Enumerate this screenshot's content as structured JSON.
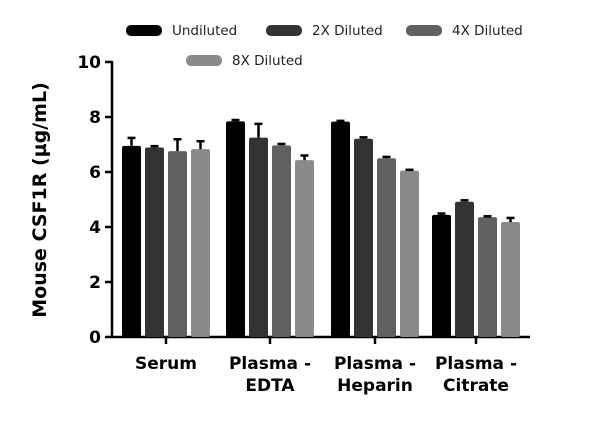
{
  "chart_data": {
    "type": "bar",
    "title": "",
    "xlabel": "",
    "ylabel": "Mouse CSF1R (µg/mL)",
    "ylim": [
      0,
      10
    ],
    "yticks": [
      "0",
      "2",
      "4",
      "6",
      "8",
      "10"
    ],
    "categories": [
      [
        "Serum"
      ],
      [
        "Plasma -",
        "EDTA"
      ],
      [
        "Plasma -",
        "Heparin"
      ],
      [
        "Plasma -",
        "Citrate"
      ]
    ],
    "legend_position": "top",
    "series": [
      {
        "name": "Undiluted",
        "color": "#000000",
        "values": [
          6.95,
          7.84,
          7.83,
          4.44
        ],
        "errors": [
          0.29,
          0.05,
          0.03,
          0.05
        ]
      },
      {
        "name": "2X Diluted",
        "color": "#333333",
        "values": [
          6.89,
          7.25,
          7.21,
          4.92
        ],
        "errors": [
          0.05,
          0.5,
          0.05,
          0.05
        ]
      },
      {
        "name": "4X Diluted",
        "color": "#606060",
        "values": [
          6.76,
          6.97,
          6.5,
          4.36
        ],
        "errors": [
          0.43,
          0.05,
          0.05,
          0.03
        ]
      },
      {
        "name": "8X Diluted",
        "color": "#8a8a8a",
        "values": [
          6.83,
          6.43,
          6.05,
          4.18
        ],
        "errors": [
          0.29,
          0.17,
          0.03,
          0.15
        ]
      }
    ]
  }
}
